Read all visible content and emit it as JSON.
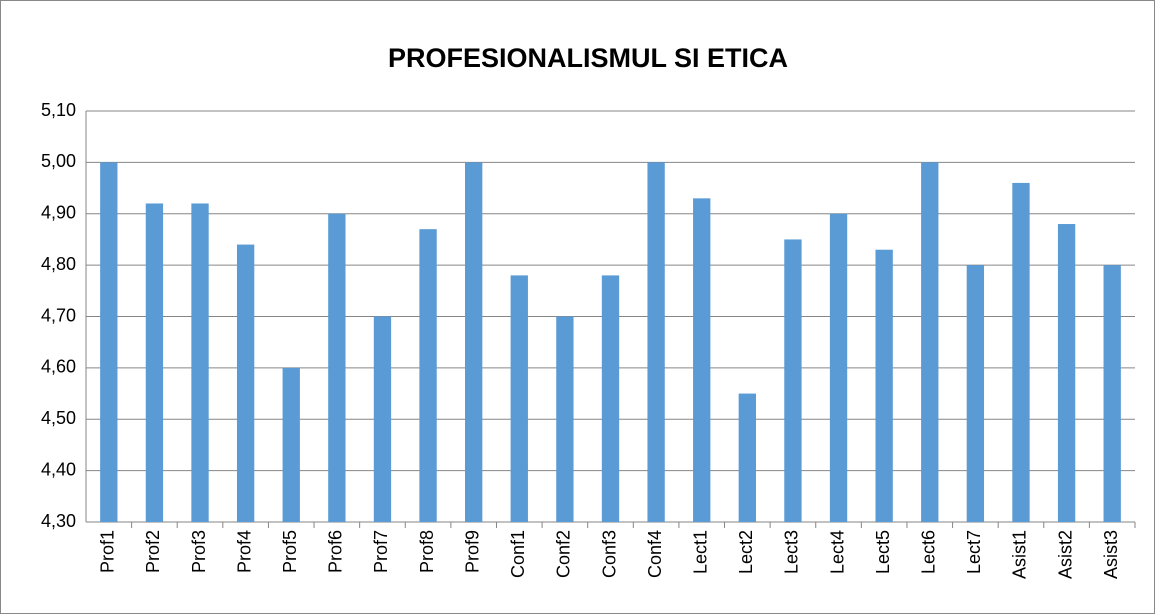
{
  "chart_data": {
    "type": "bar",
    "title": "PROFESIONALISMUL SI ETICA",
    "categories": [
      "Prof1",
      "Prof2",
      "Prof3",
      "Prof4",
      "Prof5",
      "Prof6",
      "Prof7",
      "Prof8",
      "Prof9",
      "Conf1",
      "Conf2",
      "Conf3",
      "Conf4",
      "Lect1",
      "Lect2",
      "Lect3",
      "Lect4",
      "Lect5",
      "Lect6",
      "Lect7",
      "Asist1",
      "Asist2",
      "Asist3"
    ],
    "values": [
      5.0,
      4.92,
      4.92,
      4.84,
      4.6,
      4.9,
      4.7,
      4.87,
      5.0,
      4.78,
      4.7,
      4.78,
      5.0,
      4.93,
      4.55,
      4.85,
      4.9,
      4.83,
      5.0,
      4.8,
      4.96,
      4.88,
      4.8
    ],
    "color": "#5b9bd5",
    "ylim": [
      4.3,
      5.1
    ],
    "yticks": [
      {
        "value": 4.3,
        "label": "4,30"
      },
      {
        "value": 4.4,
        "label": "4,40"
      },
      {
        "value": 4.5,
        "label": "4,50"
      },
      {
        "value": 4.6,
        "label": "4,60"
      },
      {
        "value": 4.7,
        "label": "4,70"
      },
      {
        "value": 4.8,
        "label": "4,80"
      },
      {
        "value": 4.9,
        "label": "4,90"
      },
      {
        "value": 5.0,
        "label": "5,00"
      },
      {
        "value": 5.1,
        "label": "5,10"
      }
    ],
    "grid": true
  }
}
